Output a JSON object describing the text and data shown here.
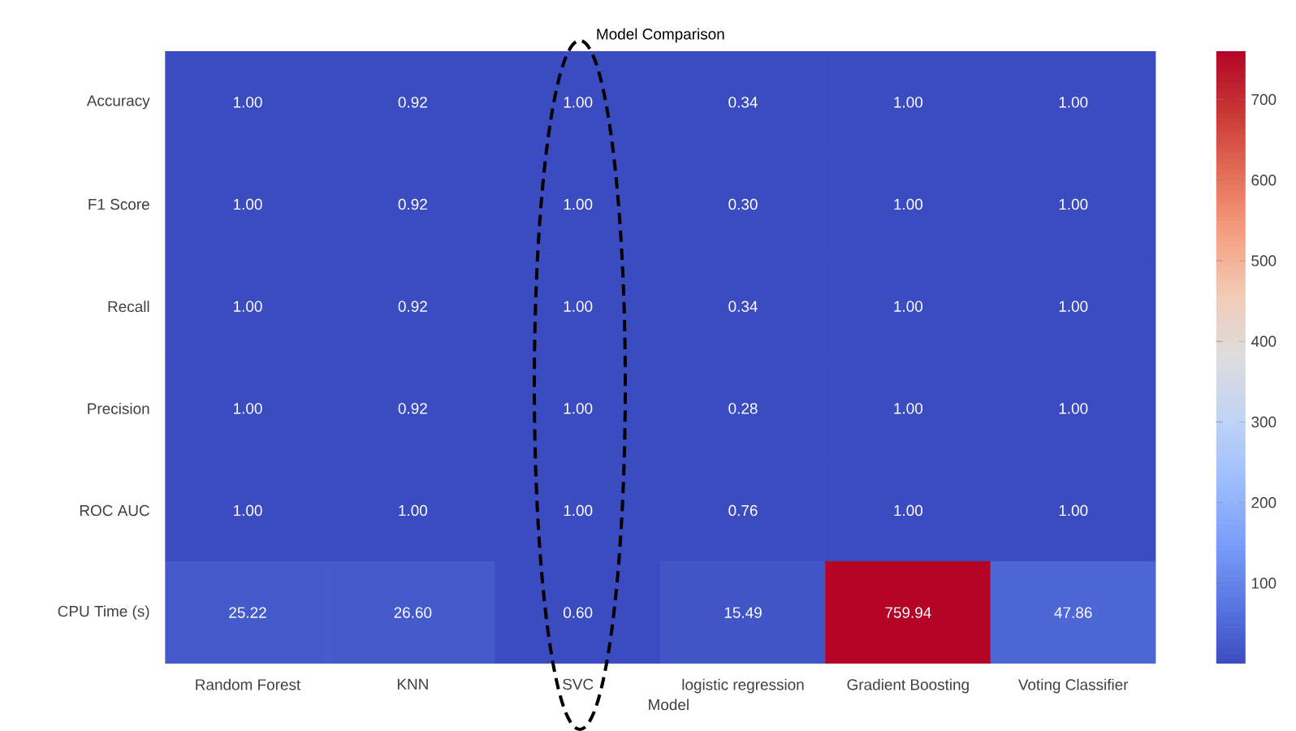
{
  "chart_data": {
    "type": "heatmap",
    "title": "Model Comparison",
    "xlabel": "Model",
    "categories": [
      "Random Forest",
      "KNN",
      "SVC",
      "logistic regression",
      "Gradient Boosting",
      "Voting Classifier"
    ],
    "y_categories": [
      "Accuracy",
      "F1 Score",
      "Recall",
      "Precision",
      "ROC AUC",
      "CPU Time (s)"
    ],
    "cells": [
      [
        1.0,
        0.92,
        1.0,
        0.34,
        1.0,
        1.0
      ],
      [
        1.0,
        0.92,
        1.0,
        0.3,
        1.0,
        1.0
      ],
      [
        1.0,
        0.92,
        1.0,
        0.34,
        1.0,
        1.0
      ],
      [
        1.0,
        0.92,
        1.0,
        0.28,
        1.0,
        1.0
      ],
      [
        1.0,
        1.0,
        1.0,
        0.76,
        1.0,
        1.0
      ],
      [
        25.22,
        26.6,
        0.6,
        15.49,
        759.94,
        47.86
      ]
    ],
    "cell_labels": [
      [
        "1.00",
        "0.92",
        "1.00",
        "0.34",
        "1.00",
        "1.00"
      ],
      [
        "1.00",
        "0.92",
        "1.00",
        "0.30",
        "1.00",
        "1.00"
      ],
      [
        "1.00",
        "0.92",
        "1.00",
        "0.34",
        "1.00",
        "1.00"
      ],
      [
        "1.00",
        "0.92",
        "1.00",
        "0.28",
        "1.00",
        "1.00"
      ],
      [
        "1.00",
        "1.00",
        "1.00",
        "0.76",
        "1.00",
        "1.00"
      ],
      [
        "25.22",
        "26.60",
        "0.60",
        "15.49",
        "759.94",
        "47.86"
      ]
    ],
    "clim": [
      0.28,
      759.94
    ],
    "cticks": [
      100,
      200,
      300,
      400,
      500,
      600,
      700
    ]
  }
}
